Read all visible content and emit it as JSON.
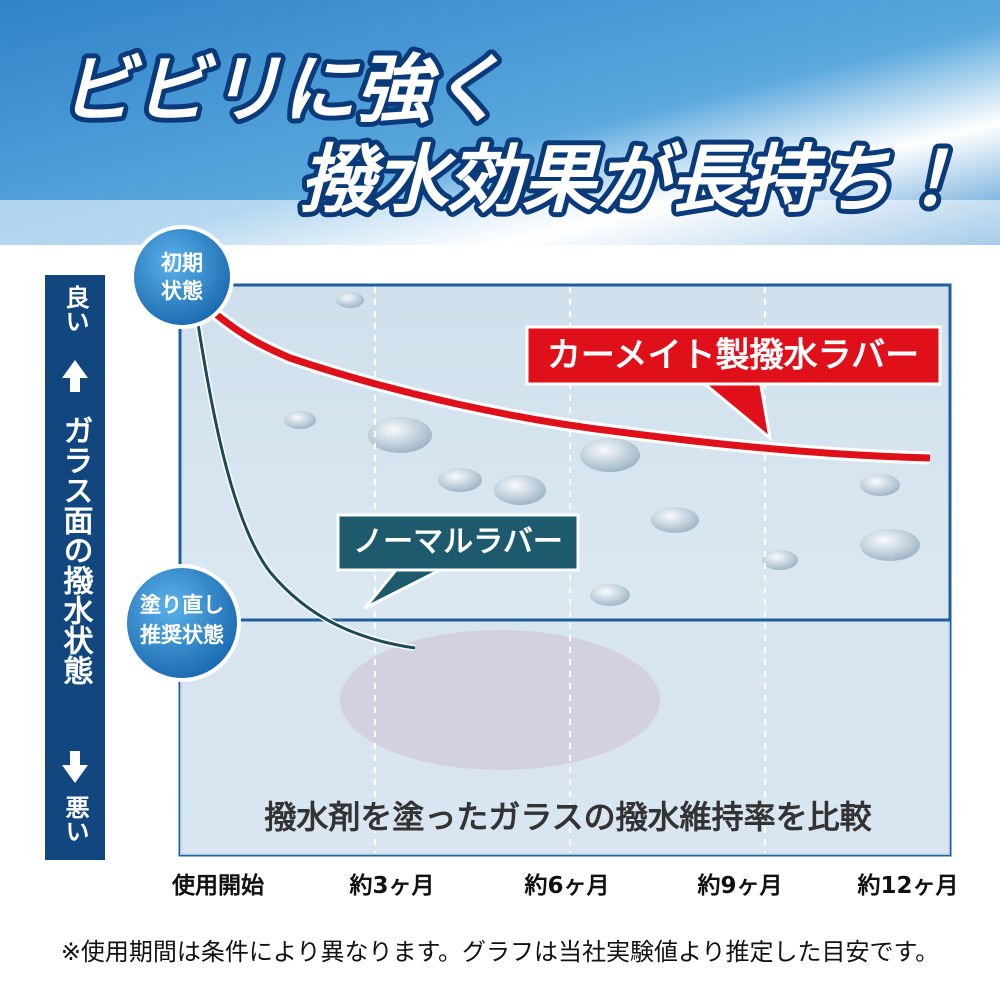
{
  "header": {
    "title_line1": "ビビリに強く",
    "title_line2": "撥水効果が長持ち！"
  },
  "chart": {
    "badge_initial": [
      "初期",
      "状態"
    ],
    "badge_recoat": [
      "塗り直し",
      "推奨状態"
    ],
    "y_axis": {
      "top": "良い",
      "label": "ガラス面の撥水状態",
      "bottom": "悪い"
    },
    "series_labels": [
      "カーメイト製撥水ラバー",
      "ノーマルラバー"
    ],
    "caption": "撥水剤を塗ったガラスの撥水維持率を比較",
    "x_labels": [
      "使用開始",
      "約3ヶ月",
      "約6ヶ月",
      "約9ヶ月",
      "約12ヶ月"
    ]
  },
  "footnote": "※使用期間は条件により異なります。グラフは当社実験値より推定した目安です。"
}
